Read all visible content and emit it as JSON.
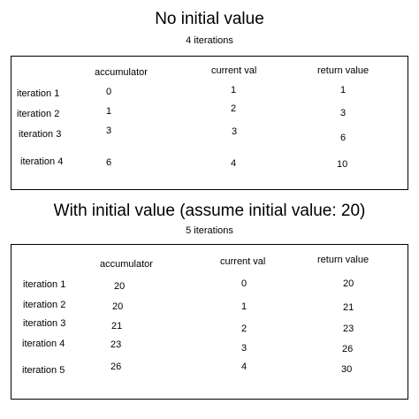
{
  "sections": [
    {
      "title": "No initial value",
      "subtitle": "4 iterations",
      "headers": [
        "accumulator",
        "current val",
        "return value"
      ],
      "rows": [
        {
          "label": "iteration 1",
          "accumulator": "0",
          "current": "1",
          "ret": "1"
        },
        {
          "label": "iteration 2",
          "accumulator": "1",
          "current": "2",
          "ret": "3"
        },
        {
          "label": "iteration 3",
          "accumulator": "3",
          "current": "3",
          "ret": "6"
        },
        {
          "label": "iteration 4",
          "accumulator": "6",
          "current": "4",
          "ret": "10"
        }
      ]
    },
    {
      "title": "With initial value (assume initial value: 20)",
      "subtitle": "5 iterations",
      "headers": [
        "accumulator",
        "current val",
        "return value"
      ],
      "rows": [
        {
          "label": "iteration 1",
          "accumulator": "20",
          "current": "0",
          "ret": "20"
        },
        {
          "label": "iteration 2",
          "accumulator": "20",
          "current": "1",
          "ret": "21"
        },
        {
          "label": "iteration 3",
          "accumulator": "21",
          "current": "2",
          "ret": "23"
        },
        {
          "label": "iteration 4",
          "accumulator": "23",
          "current": "3",
          "ret": "26"
        },
        {
          "label": "iteration 5",
          "accumulator": "26",
          "current": "4",
          "ret": "30"
        }
      ]
    }
  ]
}
